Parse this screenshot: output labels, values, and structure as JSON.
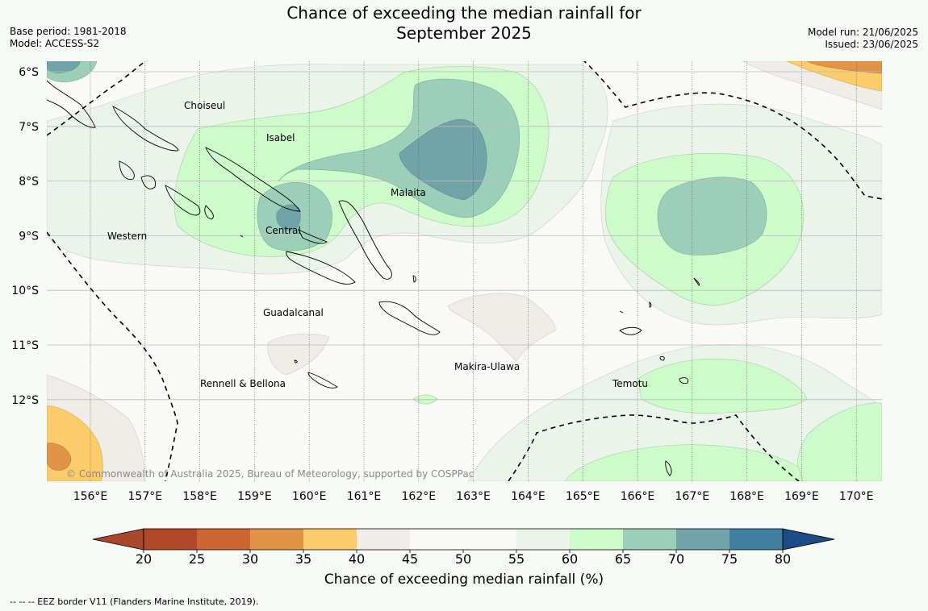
{
  "header": {
    "title_line1": "Chance of exceeding the median rainfall for",
    "title_line2": "September 2025",
    "base_period": "Base period: 1981-2018",
    "model": "Model: ACCESS-S2",
    "model_run": "Model run: 21/06/2025",
    "issued": "Issued: 23/06/2025"
  },
  "map": {
    "lat_labels": [
      "6°S",
      "7°S",
      "8°S",
      "9°S",
      "10°S",
      "11°S",
      "12°S"
    ],
    "lon_labels": [
      "156°E",
      "157°E",
      "158°E",
      "159°E",
      "160°E",
      "161°E",
      "162°E",
      "163°E",
      "164°E",
      "165°E",
      "166°E",
      "167°E",
      "168°E",
      "169°E",
      "170°E"
    ],
    "regions": [
      "Choiseul",
      "Isabel",
      "Malaita",
      "Central",
      "Western",
      "Guadalcanal",
      "Makira-Ulawa",
      "Temotu",
      "Rennell & Bellona"
    ],
    "copyright": "© Commonwealth of Australia 2025, Bureau of Meteorology, supported by COSPPac"
  },
  "colorbar": {
    "ticks": [
      "20",
      "25",
      "30",
      "35",
      "40",
      "45",
      "50",
      "55",
      "60",
      "65",
      "70",
      "75",
      "80"
    ],
    "colors": [
      "#a8482a",
      "#b1482a",
      "#cd6633",
      "#e19448",
      "#fdcc6a",
      "#f0ede8",
      "#f9faf7",
      "#f9faf7",
      "#ebf4ea",
      "#cdfbc9",
      "#9ccfb9",
      "#71a4a8",
      "#427fa0",
      "#1a4d86"
    ],
    "title": "Chance of exceeding median rainfall (%)"
  },
  "footnote": "--  --  -- EEZ border V11 (Flanders Marine Institute, 2019)."
}
